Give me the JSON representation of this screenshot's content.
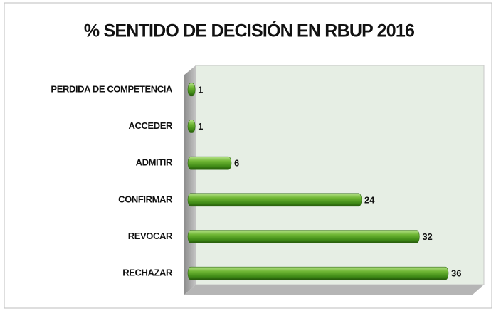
{
  "chart_data": {
    "type": "bar",
    "orientation": "horizontal",
    "title": "% SENTIDO DE DECISIÓN EN RBUP 2016",
    "categories": [
      "PERDIDA DE COMPETENCIA",
      "ACCEDER",
      "ADMITIR",
      "CONFIRMAR",
      "REVOCAR",
      "RECHAZAR"
    ],
    "values": [
      1,
      1,
      6,
      24,
      32,
      36
    ],
    "color": "#4e9a1f"
  }
}
